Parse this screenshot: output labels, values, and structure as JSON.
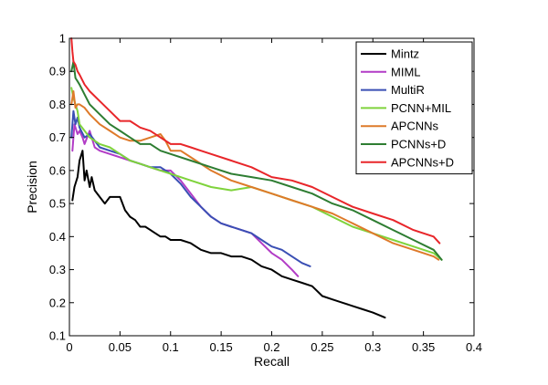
{
  "chart_data": {
    "type": "line",
    "title": "",
    "xlabel": "Recall",
    "ylabel": "Precision",
    "xlim": [
      0,
      0.4
    ],
    "ylim": [
      0.1,
      1
    ],
    "xticks": [
      0,
      0.05,
      0.1,
      0.15,
      0.2,
      0.25,
      0.3,
      0.35,
      0.4
    ],
    "xtick_labels": [
      "0",
      "0.05",
      "0.1",
      "0.15",
      "0.2",
      "0.25",
      "0.3",
      "0.35",
      "0.4"
    ],
    "yticks": [
      0.1,
      0.2,
      0.3,
      0.4,
      0.5,
      0.6,
      0.7,
      0.8,
      0.9,
      1
    ],
    "ytick_labels": [
      "0.1",
      "0.2",
      "0.3",
      "0.4",
      "0.5",
      "0.6",
      "0.7",
      "0.8",
      "0.9",
      "1"
    ],
    "grid": false,
    "legend_position": "top-right",
    "series": [
      {
        "name": "Mintz",
        "color": "#000000",
        "x": [
          0.003,
          0.005,
          0.008,
          0.01,
          0.013,
          0.015,
          0.017,
          0.02,
          0.022,
          0.025,
          0.03,
          0.035,
          0.04,
          0.05,
          0.055,
          0.06,
          0.065,
          0.07,
          0.075,
          0.08,
          0.085,
          0.09,
          0.095,
          0.1,
          0.11,
          0.12,
          0.13,
          0.14,
          0.15,
          0.16,
          0.17,
          0.18,
          0.19,
          0.2,
          0.21,
          0.22,
          0.23,
          0.24,
          0.25,
          0.26,
          0.27,
          0.28,
          0.29,
          0.3,
          0.312
        ],
        "y": [
          0.51,
          0.55,
          0.58,
          0.63,
          0.66,
          0.57,
          0.6,
          0.55,
          0.58,
          0.54,
          0.52,
          0.5,
          0.52,
          0.52,
          0.48,
          0.46,
          0.45,
          0.43,
          0.43,
          0.42,
          0.41,
          0.4,
          0.4,
          0.39,
          0.39,
          0.38,
          0.36,
          0.35,
          0.35,
          0.34,
          0.34,
          0.33,
          0.31,
          0.3,
          0.28,
          0.27,
          0.26,
          0.25,
          0.22,
          0.21,
          0.2,
          0.19,
          0.18,
          0.17,
          0.155
        ]
      },
      {
        "name": "MIML",
        "color": "#b23cc6",
        "x": [
          0.003,
          0.005,
          0.008,
          0.01,
          0.013,
          0.015,
          0.02,
          0.025,
          0.03,
          0.04,
          0.05,
          0.06,
          0.07,
          0.08,
          0.09,
          0.1,
          0.11,
          0.12,
          0.13,
          0.14,
          0.15,
          0.16,
          0.17,
          0.18,
          0.19,
          0.2,
          0.21,
          0.22,
          0.226
        ],
        "y": [
          0.66,
          0.74,
          0.71,
          0.72,
          0.7,
          0.68,
          0.72,
          0.67,
          0.66,
          0.65,
          0.64,
          0.63,
          0.62,
          0.61,
          0.6,
          0.6,
          0.57,
          0.53,
          0.49,
          0.46,
          0.44,
          0.43,
          0.42,
          0.41,
          0.38,
          0.35,
          0.33,
          0.3,
          0.28
        ]
      },
      {
        "name": "MultiR",
        "color": "#3a4fb4",
        "x": [
          0.002,
          0.004,
          0.006,
          0.008,
          0.01,
          0.015,
          0.02,
          0.03,
          0.04,
          0.05,
          0.06,
          0.07,
          0.08,
          0.09,
          0.1,
          0.11,
          0.12,
          0.13,
          0.14,
          0.15,
          0.16,
          0.17,
          0.18,
          0.19,
          0.2,
          0.21,
          0.22,
          0.23,
          0.238
        ],
        "y": [
          0.7,
          0.78,
          0.74,
          0.76,
          0.73,
          0.7,
          0.71,
          0.67,
          0.66,
          0.65,
          0.63,
          0.62,
          0.61,
          0.61,
          0.59,
          0.56,
          0.52,
          0.49,
          0.46,
          0.44,
          0.43,
          0.42,
          0.41,
          0.39,
          0.37,
          0.36,
          0.34,
          0.32,
          0.31
        ]
      },
      {
        "name": "PCNN+MIL",
        "color": "#7fd33c",
        "x": [
          0.002,
          0.004,
          0.006,
          0.008,
          0.01,
          0.015,
          0.02,
          0.03,
          0.04,
          0.05,
          0.06,
          0.07,
          0.08,
          0.09,
          0.1,
          0.12,
          0.14,
          0.16,
          0.18,
          0.2,
          0.22,
          0.24,
          0.26,
          0.28,
          0.3,
          0.32,
          0.34,
          0.36,
          0.368
        ],
        "y": [
          0.85,
          0.82,
          0.8,
          0.78,
          0.74,
          0.72,
          0.7,
          0.68,
          0.67,
          0.65,
          0.63,
          0.62,
          0.61,
          0.6,
          0.59,
          0.57,
          0.55,
          0.54,
          0.55,
          0.53,
          0.51,
          0.49,
          0.46,
          0.43,
          0.41,
          0.39,
          0.37,
          0.35,
          0.33
        ]
      },
      {
        "name": "APCNNs",
        "color": "#de7a2a",
        "x": [
          0.002,
          0.004,
          0.006,
          0.008,
          0.01,
          0.015,
          0.02,
          0.03,
          0.04,
          0.05,
          0.06,
          0.07,
          0.08,
          0.09,
          0.095,
          0.1,
          0.11,
          0.12,
          0.13,
          0.14,
          0.16,
          0.18,
          0.2,
          0.22,
          0.24,
          0.26,
          0.28,
          0.3,
          0.32,
          0.34,
          0.36,
          0.365
        ],
        "y": [
          0.8,
          0.84,
          0.79,
          0.8,
          0.8,
          0.79,
          0.77,
          0.74,
          0.72,
          0.7,
          0.69,
          0.69,
          0.7,
          0.71,
          0.69,
          0.66,
          0.66,
          0.64,
          0.62,
          0.6,
          0.57,
          0.55,
          0.53,
          0.51,
          0.49,
          0.47,
          0.44,
          0.41,
          0.38,
          0.36,
          0.34,
          0.33
        ]
      },
      {
        "name": "PCNNs+D",
        "color": "#2e7d32",
        "x": [
          0.002,
          0.004,
          0.006,
          0.008,
          0.01,
          0.015,
          0.02,
          0.03,
          0.04,
          0.05,
          0.06,
          0.07,
          0.08,
          0.09,
          0.1,
          0.12,
          0.14,
          0.16,
          0.18,
          0.2,
          0.22,
          0.24,
          0.26,
          0.28,
          0.3,
          0.32,
          0.34,
          0.36,
          0.368
        ],
        "y": [
          0.9,
          0.93,
          0.88,
          0.87,
          0.86,
          0.83,
          0.8,
          0.77,
          0.74,
          0.72,
          0.7,
          0.68,
          0.68,
          0.66,
          0.65,
          0.63,
          0.61,
          0.59,
          0.58,
          0.57,
          0.55,
          0.53,
          0.5,
          0.48,
          0.45,
          0.42,
          0.39,
          0.36,
          0.33
        ]
      },
      {
        "name": "APCNNs+D",
        "color": "#e8262a",
        "x": [
          0.002,
          0.003,
          0.004,
          0.006,
          0.008,
          0.01,
          0.015,
          0.02,
          0.03,
          0.04,
          0.05,
          0.06,
          0.07,
          0.08,
          0.09,
          0.1,
          0.11,
          0.12,
          0.13,
          0.14,
          0.16,
          0.18,
          0.2,
          0.22,
          0.24,
          0.26,
          0.28,
          0.3,
          0.32,
          0.34,
          0.36,
          0.366
        ],
        "y": [
          1.0,
          0.96,
          0.93,
          0.92,
          0.9,
          0.89,
          0.86,
          0.84,
          0.81,
          0.78,
          0.75,
          0.75,
          0.73,
          0.72,
          0.7,
          0.68,
          0.68,
          0.67,
          0.66,
          0.65,
          0.63,
          0.61,
          0.58,
          0.57,
          0.55,
          0.52,
          0.49,
          0.47,
          0.45,
          0.42,
          0.4,
          0.38
        ]
      }
    ]
  }
}
